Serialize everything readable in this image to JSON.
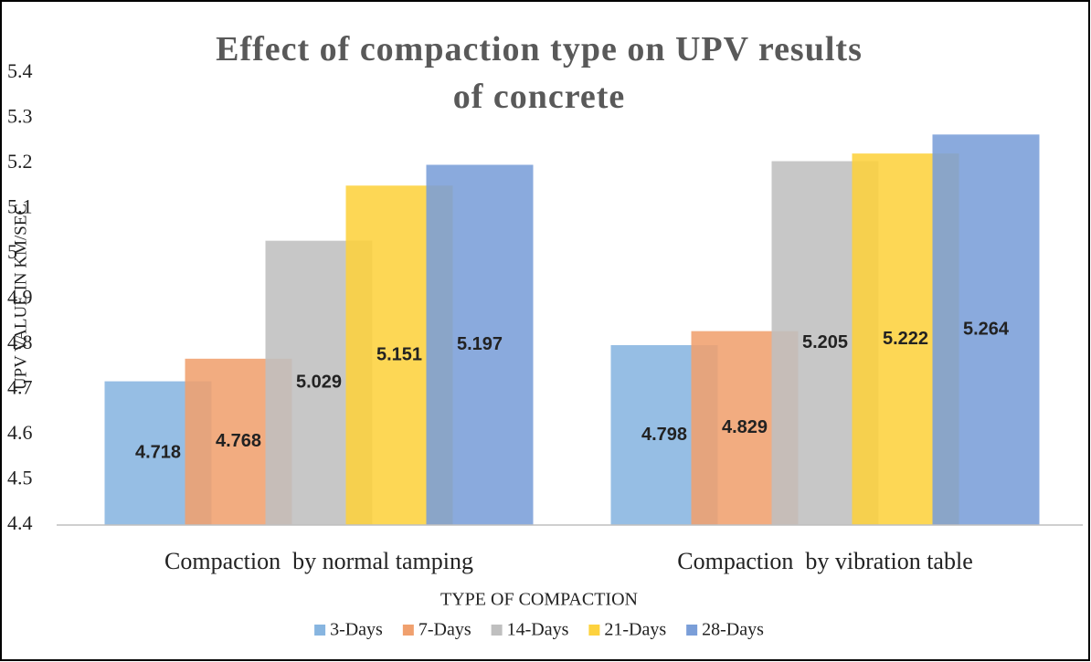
{
  "chart_data": {
    "type": "bar",
    "title": "Effect of compaction type on UPV results of concrete",
    "y_label": "UPV VALUE IN KM/SEC",
    "x_label": "TYPE OF COMPACTION",
    "categories": [
      "Compaction  by normal tamping",
      "Compaction  by vibration table"
    ],
    "series": [
      {
        "name": "3-Days",
        "color": "#87b5e0",
        "values": [
          4.718,
          4.798
        ]
      },
      {
        "name": "7-Days",
        "color": "#f0a06e",
        "values": [
          4.768,
          4.829
        ]
      },
      {
        "name": "14-Days",
        "color": "#bfbfbf",
        "values": [
          5.029,
          5.205
        ]
      },
      {
        "name": "21-Days",
        "color": "#fdd23e",
        "values": [
          5.151,
          5.222
        ]
      },
      {
        "name": "28-Days",
        "color": "#7a9ed8",
        "values": [
          5.197,
          5.264
        ]
      }
    ],
    "ylim": [
      4.4,
      5.4
    ],
    "yticks": [
      4.4,
      4.5,
      4.6,
      4.7,
      4.8,
      4.9,
      5,
      5.1,
      5.2,
      5.3,
      5.4
    ],
    "legend": "bottom"
  }
}
